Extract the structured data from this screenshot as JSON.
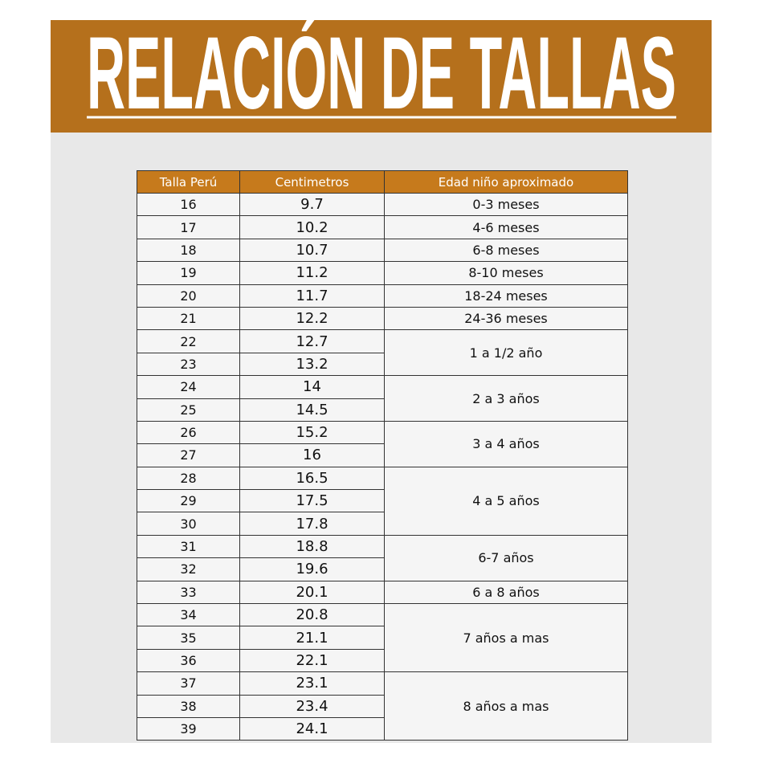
{
  "header": {
    "title": "RELACIÓN DE TALLAS"
  },
  "table": {
    "headers": [
      "Talla Perú",
      "Centimetros",
      "Edad niño aproximado"
    ],
    "rows": [
      [
        "16",
        "9.7",
        "0-3 meses"
      ],
      [
        "17",
        "10.2",
        "4-6 meses"
      ],
      [
        "18",
        "10.7",
        "6-8 meses"
      ],
      [
        "19",
        "11.2",
        "8-10 meses"
      ],
      [
        "20",
        "11.7",
        "18-24 meses"
      ],
      [
        "21",
        "12.2",
        "24-36 meses"
      ],
      [
        "22",
        "12.7",
        "1 a 1/2 año"
      ],
      [
        "23",
        "13.2",
        null
      ],
      [
        "24",
        "14",
        "2 a 3 años"
      ],
      [
        "25",
        "14.5",
        null
      ],
      [
        "26",
        "15.2",
        "3 a  4 años"
      ],
      [
        "27",
        "16",
        null
      ],
      [
        "28",
        "16.5",
        "4  a  5 años"
      ],
      [
        "29",
        "17.5",
        null
      ],
      [
        "30",
        "17.8",
        null
      ],
      [
        "31",
        "18.8",
        "6-7 años"
      ],
      [
        "32",
        "19.6",
        null
      ],
      [
        "33",
        "20.1",
        "6 a 8 años"
      ],
      [
        "34",
        "20.8",
        "7 años a mas"
      ],
      [
        "35",
        "21.1",
        null
      ],
      [
        "36",
        "22.1",
        null
      ],
      [
        "37",
        "23.1",
        "8 años a mas"
      ],
      [
        "38",
        "23.4",
        null
      ],
      [
        "39",
        "24.1",
        null
      ]
    ]
  }
}
